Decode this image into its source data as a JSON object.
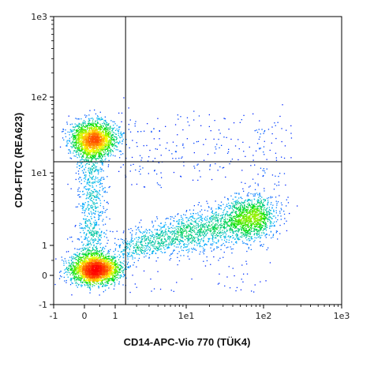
{
  "chart_data": {
    "type": "scatter",
    "plot_subtype": "flow-cytometry density dot plot (pseudocolor)",
    "xlabel": "CD14-APC-Vio 770 (TÜK4)",
    "ylabel": "CD4-FITC (REA623)",
    "x_axis": {
      "scale": "biexponential",
      "range": [
        -1,
        1000
      ],
      "ticks": [
        {
          "value": -1,
          "label": "-1"
        },
        {
          "value": 0,
          "label": "0"
        },
        {
          "value": 1,
          "label": "1"
        },
        {
          "value": 10,
          "label": "1e1"
        },
        {
          "value": 100,
          "label": "1e2"
        },
        {
          "value": 1000,
          "label": "1e3"
        }
      ]
    },
    "y_axis": {
      "scale": "biexponential",
      "range": [
        -1,
        1000
      ],
      "ticks": [
        {
          "value": -1,
          "label": "-1"
        },
        {
          "value": 0,
          "label": "0"
        },
        {
          "value": 1,
          "label": "1"
        },
        {
          "value": 10,
          "label": "1e1"
        },
        {
          "value": 100,
          "label": "1e2"
        },
        {
          "value": 1000,
          "label": "1e3"
        }
      ]
    },
    "quadrant_gate": {
      "x": 1.4,
      "y": 14
    },
    "populations": [
      {
        "description": "CD4-high, CD14-negative cluster",
        "x_center": 0.3,
        "y_center": 28,
        "relative_density": "high"
      },
      {
        "description": "double-negative cluster",
        "x_center": 0.3,
        "y_center": 0.1,
        "relative_density": "very high"
      },
      {
        "description": "CD14-positive, CD4-low spread",
        "x_range": [
          2,
          150
        ],
        "y_center": 2.0,
        "relative_density": "medium"
      }
    ],
    "grid": false,
    "legend": "none",
    "color_scale": [
      "#0000ff",
      "#00b4ff",
      "#00e000",
      "#ffff00",
      "#ff6000",
      "#ff0000"
    ]
  }
}
